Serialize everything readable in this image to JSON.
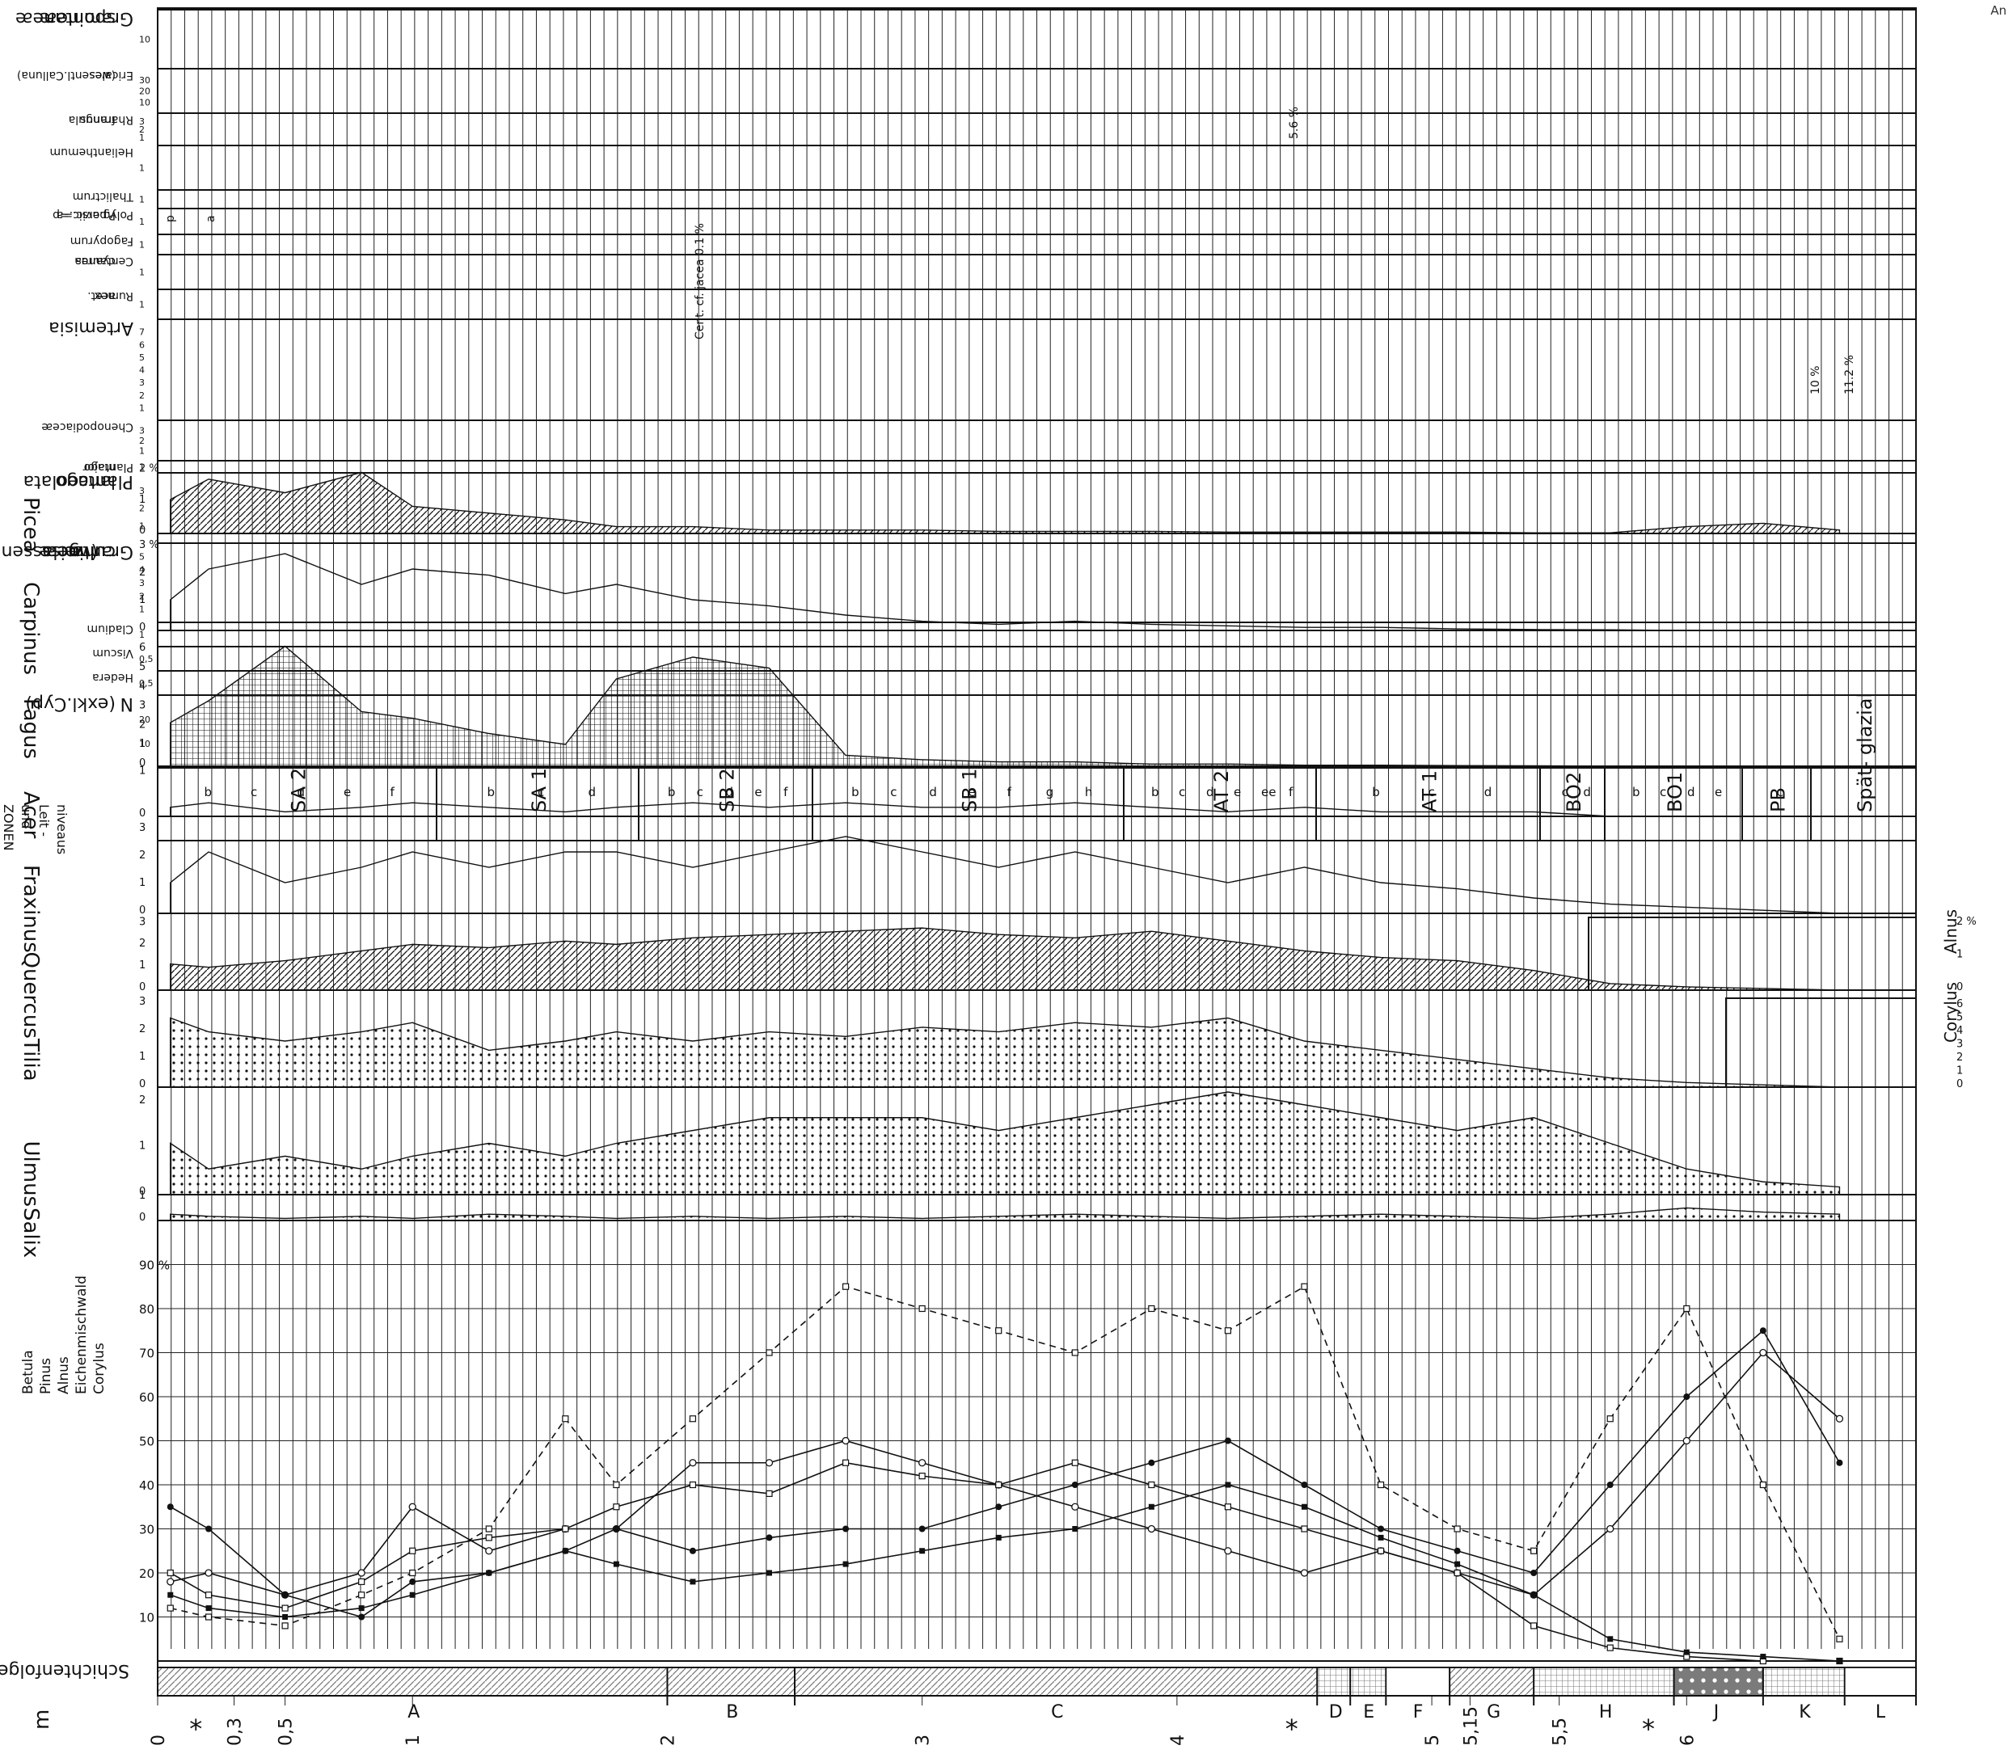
{
  "corner_label": "An",
  "chart_data": {
    "type": "area",
    "title": "",
    "depth_axis": {
      "label": "m",
      "ticks": [
        "0",
        "0,3",
        "0,5",
        "1",
        "2",
        "3",
        "4",
        "5",
        "5,15",
        "5,5",
        "6"
      ],
      "values": [
        0,
        0.3,
        0.5,
        1,
        2,
        3,
        4,
        5,
        5.15,
        5.5,
        6
      ],
      "range": [
        0,
        6
      ],
      "asterisks": [
        0.15,
        4.45,
        5.85
      ]
    },
    "lithology": {
      "label": "Schichtenfolge",
      "units": [
        {
          "name": "A",
          "from": 0,
          "to": 2.0
        },
        {
          "name": "B",
          "from": 2.0,
          "to": 2.5
        },
        {
          "name": "C",
          "from": 2.5,
          "to": 4.55
        },
        {
          "name": "D",
          "from": 4.55,
          "to": 4.68
        },
        {
          "name": "E",
          "from": 4.68,
          "to": 4.82
        },
        {
          "name": "F",
          "from": 4.82,
          "to": 5.07
        },
        {
          "name": "G",
          "from": 5.07,
          "to": 5.4
        },
        {
          "name": "H",
          "from": 5.4,
          "to": 5.95
        },
        {
          "name": "J",
          "from": 5.95,
          "to": 6.3
        },
        {
          "name": "K",
          "from": 6.3,
          "to": 6.62
        },
        {
          "name": "L",
          "from": 6.62,
          "to": 6.9
        }
      ]
    },
    "main_diagram": {
      "ticks": [
        "10",
        "20",
        "30",
        "40",
        "50",
        "60",
        "70",
        "80",
        "90 %"
      ],
      "legend": [
        "Betula",
        "Pinus",
        "Alnus",
        "Eichenmischwald",
        "Corylus"
      ],
      "samples": [
        0.05,
        0.2,
        0.5,
        0.8,
        1.0,
        1.3,
        1.6,
        1.8,
        2.1,
        2.4,
        2.7,
        3.0,
        3.3,
        3.6,
        3.9,
        4.2,
        4.5,
        4.8,
        5.1,
        5.4,
        5.7,
        6.0,
        6.3,
        6.6
      ],
      "series": [
        {
          "name": "Betula",
          "values": [
            18,
            20,
            15,
            20,
            35,
            25,
            30,
            30,
            45,
            45,
            50,
            45,
            40,
            35,
            30,
            25,
            20,
            25,
            20,
            15,
            30,
            50,
            70,
            55
          ]
        },
        {
          "name": "Pinus",
          "values": [
            35,
            30,
            15,
            10,
            18,
            20,
            25,
            30,
            25,
            28,
            30,
            30,
            35,
            40,
            45,
            50,
            40,
            30,
            25,
            20,
            40,
            60,
            75,
            45
          ]
        },
        {
          "name": "Alnus",
          "values": [
            20,
            15,
            12,
            18,
            25,
            28,
            30,
            35,
            40,
            38,
            45,
            42,
            40,
            45,
            40,
            35,
            30,
            25,
            20,
            8,
            3,
            1,
            0,
            0
          ]
        },
        {
          "name": "Eichenmischwald",
          "values": [
            15,
            12,
            10,
            12,
            15,
            20,
            25,
            22,
            18,
            20,
            22,
            25,
            28,
            30,
            35,
            40,
            35,
            28,
            22,
            15,
            5,
            2,
            1,
            0
          ]
        },
        {
          "name": "Corylus",
          "values": [
            12,
            10,
            8,
            15,
            20,
            30,
            55,
            40,
            55,
            70,
            85,
            80,
            75,
            70,
            80,
            75,
            85,
            40,
            30,
            25,
            55,
            80,
            40,
            5
          ]
        }
      ]
    },
    "curves": [
      {
        "name": "Salix",
        "ticks": [
          "0",
          "1"
        ],
        "fill": "dots",
        "values": [
          0.3,
          0.2,
          0.1,
          0.2,
          0.1,
          0.3,
          0.2,
          0.1,
          0.2,
          0.1,
          0.2,
          0.1,
          0.2,
          0.3,
          0.2,
          0.1,
          0.2,
          0.3,
          0.2,
          0.1,
          0.3,
          0.6,
          0.4,
          0.3
        ]
      },
      {
        "name": "Ulmus",
        "ticks": [
          "0",
          "1",
          "2"
        ],
        "fill": "dots",
        "values": [
          2,
          1,
          1.5,
          1,
          1.5,
          2,
          1.5,
          2,
          2.5,
          3,
          3,
          3,
          2.5,
          3,
          3.5,
          4,
          3.5,
          3,
          2.5,
          3,
          2,
          1,
          0.5,
          0.3
        ]
      },
      {
        "name": "Tilia",
        "ticks": [
          "0",
          "1",
          "2",
          "3"
        ],
        "fill": "dots",
        "values": [
          15,
          12,
          10,
          12,
          14,
          8,
          10,
          12,
          10,
          12,
          11,
          13,
          12,
          14,
          13,
          15,
          10,
          8,
          6,
          4,
          2,
          1,
          0.5,
          0
        ]
      },
      {
        "name": "Quercus",
        "ticks": [
          "0",
          "1",
          "2",
          "3"
        ],
        "fill": "hatch",
        "values": [
          8,
          7,
          9,
          12,
          14,
          13,
          15,
          14,
          16,
          17,
          18,
          19,
          17,
          16,
          18,
          15,
          12,
          10,
          9,
          6,
          2,
          1,
          0.5,
          0
        ]
      },
      {
        "name": "Fraxinus",
        "ticks": [
          "0",
          "1",
          "2",
          "3"
        ],
        "fill": "none",
        "values": [
          1,
          2,
          1,
          1.5,
          2,
          1.5,
          2,
          2,
          1.5,
          2,
          2.5,
          2,
          1.5,
          2,
          1.5,
          1,
          1.5,
          1,
          0.8,
          0.5,
          0.3,
          0.2,
          0.1,
          0
        ]
      },
      {
        "name": "Acer",
        "ticks": [
          "0",
          "1"
        ],
        "fill": "none",
        "values": [
          0.2,
          0.3,
          0.1,
          0.2,
          0.3,
          0.2,
          0.1,
          0.2,
          0.3,
          0.2,
          0.3,
          0.2,
          0.2,
          0.3,
          0.2,
          0.1,
          0.2,
          0.1,
          0.1,
          0.1,
          0,
          0,
          0,
          0
        ]
      },
      {
        "name": "Fagus",
        "ticks": [
          "0",
          "1",
          "2",
          "3",
          "4",
          "5",
          "6"
        ],
        "fill": "grid",
        "values": [
          20,
          30,
          55,
          25,
          22,
          15,
          10,
          40,
          50,
          45,
          5,
          3,
          2,
          2,
          1,
          1,
          0.5,
          0.5,
          0.3,
          0.2,
          0,
          0,
          0,
          0
        ]
      },
      {
        "name": "Carpinus",
        "ticks": [
          "0",
          "1",
          "2",
          "3 %"
        ],
        "fill": "none",
        "values": [
          10,
          20,
          25,
          15,
          20,
          18,
          12,
          15,
          10,
          8,
          5,
          3,
          2,
          3,
          2,
          1.5,
          1,
          1,
          0.5,
          0.3,
          0.2,
          0,
          0,
          0
        ]
      },
      {
        "name": "Picea",
        "ticks": [
          "0",
          "1",
          "2 %"
        ],
        "fill": "hatch",
        "values": [
          5,
          8,
          6,
          9,
          4,
          3,
          2,
          1,
          1,
          0.5,
          0.5,
          0.5,
          0.3,
          0.3,
          0.3,
          0.2,
          0.2,
          0.2,
          0.2,
          0.1,
          0.1,
          1,
          1.5,
          0.5
        ]
      }
    ],
    "inset_curves": [
      {
        "name": "Alnus",
        "ticks": [
          "0",
          "1",
          "2 %"
        ]
      },
      {
        "name": "Corylus",
        "ticks": [
          "0",
          "1",
          "2",
          "3",
          "4",
          "5",
          "6"
        ]
      }
    ],
    "zones": {
      "label": [
        "ZONEN",
        "und",
        "Leit -",
        "niveaus"
      ],
      "items": [
        {
          "name": "SA 2",
          "sub": [
            "b",
            "c",
            "d",
            "e",
            "f"
          ]
        },
        {
          "name": "SA 1",
          "sub": [
            "b",
            "c",
            "d"
          ]
        },
        {
          "name": "SB 2",
          "sub": [
            "b",
            "c",
            "d",
            "e",
            "f"
          ]
        },
        {
          "name": "SB 1",
          "sub": [
            "b",
            "c",
            "d",
            "e",
            "f",
            "g",
            "h"
          ]
        },
        {
          "name": "AT 2",
          "sub": [
            "b",
            "c",
            "d",
            "e",
            "ee",
            "f"
          ]
        },
        {
          "name": "AT 1",
          "sub": [
            "b",
            "c",
            "d"
          ]
        },
        {
          "name": "BO2",
          "sub": [
            "c",
            "d"
          ]
        },
        {
          "name": "BO1",
          "sub": [
            "b",
            "c",
            "d",
            "e"
          ]
        },
        {
          "name": "PB",
          "sub": [
            "c"
          ]
        },
        {
          "name": "Spät- glazial",
          "sub": []
        }
      ]
    },
    "herb_curves": [
      {
        "name": "N (exkl.Cyp)",
        "ticks": [
          "10",
          "20"
        ],
        "fill": "black"
      },
      {
        "name": "Hedera",
        "ticks": [
          "0,5"
        ],
        "fill": "black"
      },
      {
        "name": "Viscum",
        "ticks": [
          "0,5"
        ],
        "fill": "hatch"
      },
      {
        "name": "Cladium",
        "ticks": [
          "1"
        ],
        "fill": "hatch"
      },
      {
        "name": "Gramineæ cultæ (weiss gelassen=Secale)",
        "ticks": [
          "1",
          "2",
          "3",
          "4",
          "5"
        ],
        "fill": "black-dots"
      },
      {
        "name": "Plantago lanceolata",
        "ticks": [
          "1",
          "2",
          "3"
        ],
        "fill": "black"
      },
      {
        "name": "Plantago major",
        "ticks": [
          "1"
        ],
        "fill": "black"
      },
      {
        "name": "Chenopodiaceæ",
        "ticks": [
          "1",
          "2",
          "3"
        ],
        "fill": "circles"
      },
      {
        "name": "Artemisia",
        "ticks": [
          "1",
          "2",
          "3",
          "4",
          "5",
          "6",
          "7"
        ],
        "fill": "dots"
      },
      {
        "name": "Rumex acet.",
        "ticks": [
          "1"
        ],
        "fill": "hatch"
      },
      {
        "name": "Centaurea cyanus",
        "ticks": [
          "1"
        ],
        "fill": "black"
      },
      {
        "name": "Fagopyrum",
        "ticks": [
          "1"
        ],
        "fill": "black"
      },
      {
        "name": "Polyg.avic.=a P.persic.=p",
        "ticks": [
          "1"
        ],
        "fill": "black"
      },
      {
        "name": "Thalictrum",
        "ticks": [
          "1"
        ],
        "fill": "black"
      },
      {
        "name": "Helianthemum",
        "ticks": [
          "1"
        ],
        "fill": "none"
      },
      {
        "name": "Rhamnus frangula",
        "ticks": [
          "1",
          "2",
          "3"
        ],
        "fill": "none"
      },
      {
        "name": "Ericales (wesentl.Calluna)",
        "ticks": [
          "10",
          "20",
          "30"
        ],
        "fill": "grid"
      },
      {
        "name": "Gramineæ spontaneæ",
        "ticks": [
          "10"
        ],
        "fill": "dots"
      }
    ],
    "annotations": [
      "Cent. cf. jacea 0.1 %",
      "5.6 %",
      "11.2 %",
      "10 %",
      "p",
      "a"
    ]
  }
}
